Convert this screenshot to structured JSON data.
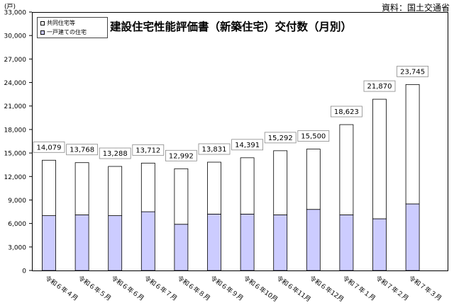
{
  "source_note": "資料：国土交通省",
  "unit_label": "(戸)",
  "chart_data": {
    "type": "bar",
    "stacked": true,
    "title": "建設住宅性能評価書（新築住宅）交付数（月別）",
    "categories": [
      "令和６年４月",
      "令和６年５月",
      "令和６年６月",
      "令和６年７月",
      "令和６年８月",
      "令和６年９月",
      "令和６年10月",
      "令和６年11月",
      "令和６年12月",
      "令和７年１月",
      "令和７年２月",
      "令和７年３月"
    ],
    "series": [
      {
        "name": "一戸建ての住宅",
        "values": [
          7000,
          7100,
          7000,
          7500,
          5900,
          7200,
          7200,
          7100,
          7800,
          7100,
          6600,
          8500
        ],
        "color": "#ccccff"
      },
      {
        "name": "共同住宅等",
        "values": [
          7079,
          6668,
          6288,
          6212,
          7092,
          6631,
          7191,
          8192,
          7700,
          11523,
          15270,
          15245
        ],
        "color": "#ffffff"
      }
    ],
    "totals": [
      14079,
      13768,
      13288,
      13712,
      12992,
      13831,
      14391,
      15292,
      15500,
      18623,
      21870,
      23745
    ],
    "total_labels": [
      "14,079",
      "13,768",
      "13,288",
      "13,712",
      "12,992",
      "13,831",
      "14,391",
      "15,292",
      "15,500",
      "18,623",
      "21,870",
      "23,745"
    ],
    "ylim": [
      0,
      33000
    ],
    "yticks": [
      0,
      3000,
      6000,
      9000,
      12000,
      15000,
      18000,
      21000,
      24000,
      27000,
      30000,
      33000
    ],
    "ytick_labels": [
      "0",
      "3,000",
      "6,000",
      "9,000",
      "12,000",
      "15,000",
      "18,000",
      "21,000",
      "24,000",
      "27,000",
      "30,000",
      "33,000"
    ],
    "grid": false,
    "legend_position": "top-left"
  }
}
